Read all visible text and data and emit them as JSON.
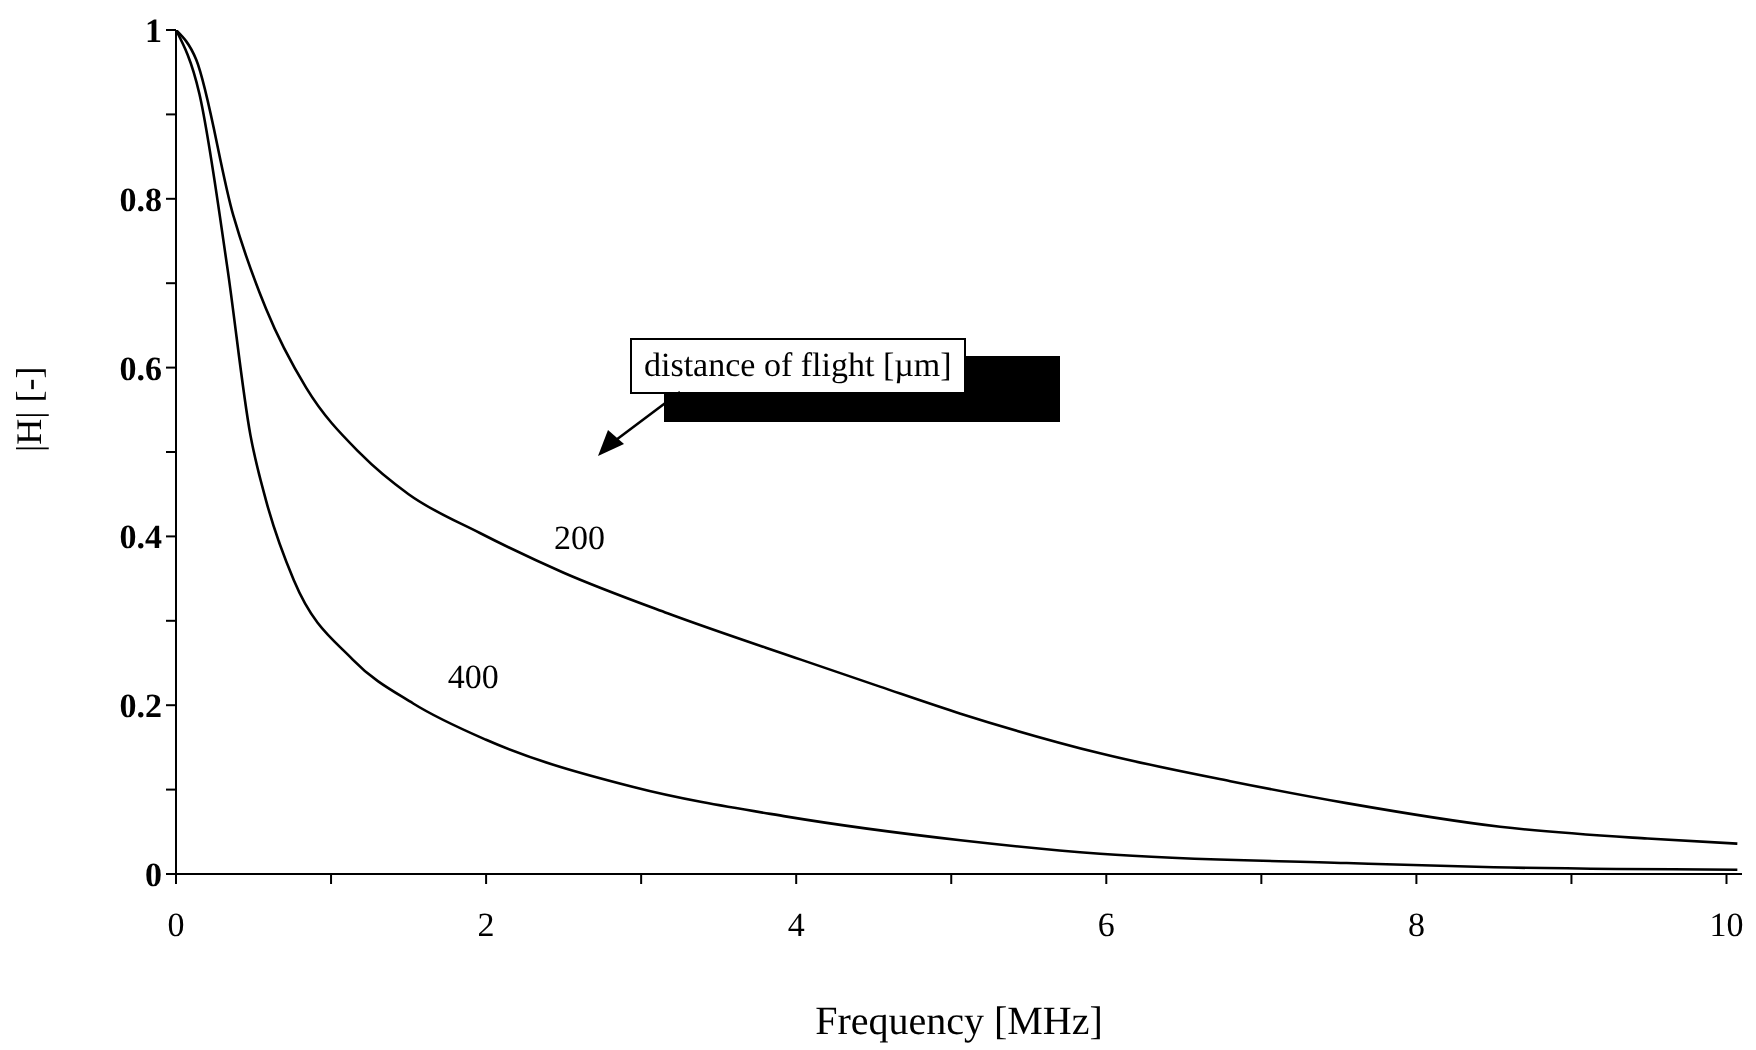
{
  "chart_data": {
    "type": "line",
    "xlabel": "Frequency [MHz]",
    "ylabel": "|H| [-]",
    "annotations": [
      "distance of flight [µm]"
    ],
    "xlim": [
      0,
      10.1
    ],
    "xticks": [
      0,
      {
        "value": 1,
        "label": null
      },
      2,
      {
        "value": 3,
        "label": null
      },
      4,
      {
        "value": 5,
        "label": null
      },
      6,
      {
        "value": 7,
        "label": null
      },
      8,
      {
        "value": 9,
        "label": null
      },
      10
    ],
    "ylim": [
      0,
      1
    ],
    "yticks": [
      0,
      {
        "value": 0.1,
        "label": null
      },
      0.2,
      {
        "value": 0.3,
        "label": null
      },
      0.4,
      {
        "value": 0.5,
        "label": null
      },
      0.6,
      {
        "value": 0.7,
        "label": null
      },
      0.8,
      {
        "value": 0.9,
        "label": null
      },
      1
    ],
    "grid": false,
    "legend": false,
    "marker": "none",
    "line_style": "solid",
    "series": [
      {
        "name": "200",
        "color": "#000000",
        "x": [
          0,
          0.13,
          0.37,
          0.58,
          0.84,
          1.19,
          1.5,
          1.96,
          2.5,
          3.17,
          4.03,
          4.54,
          5.06,
          5.96,
          6.8,
          7.55,
          8.54,
          9.49,
          10.07
        ],
        "values": [
          1,
          0.965,
          0.78,
          0.67,
          0.576,
          0.498,
          0.45,
          0.404,
          0.357,
          0.309,
          0.254,
          0.222,
          0.19,
          0.143,
          0.11,
          0.084,
          0.056,
          0.042,
          0.036
        ]
      },
      {
        "name": "400",
        "color": "#000000",
        "x": [
          0,
          0.15,
          0.33,
          0.48,
          0.58,
          0.76,
          1.14,
          1.53,
          2.0,
          2.95,
          3.94,
          5.06,
          5.96,
          7.55,
          8.5,
          10.07
        ],
        "values": [
          1,
          0.925,
          0.72,
          0.52,
          0.443,
          0.348,
          0.254,
          0.202,
          0.159,
          0.103,
          0.068,
          0.04,
          0.024,
          0.013,
          0.008,
          0.005
        ]
      }
    ]
  }
}
